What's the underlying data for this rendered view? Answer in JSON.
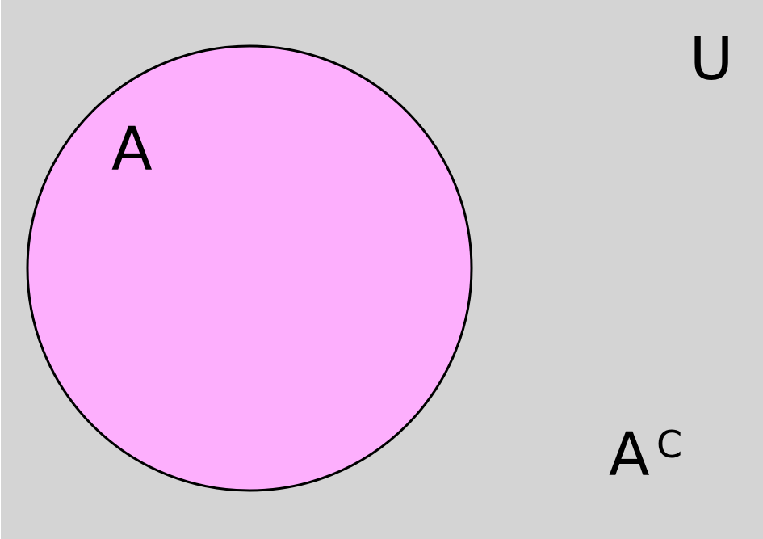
{
  "universe_label": "U",
  "set": {
    "label": "A",
    "fill_color": "#fdaffd",
    "stroke_color": "#000000"
  },
  "complement": {
    "base": "A",
    "superscript": "C"
  },
  "background_color": "#d4d4d4"
}
